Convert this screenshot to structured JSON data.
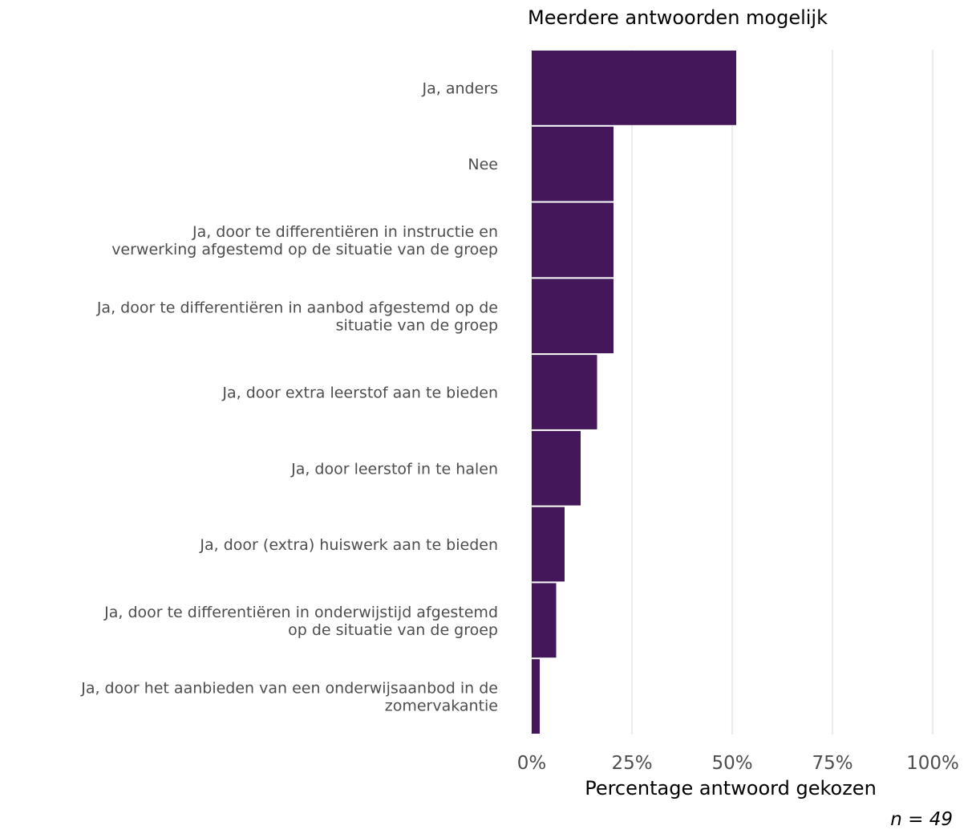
{
  "chart_data": {
    "type": "bar",
    "orientation": "horizontal",
    "subtitle": "Meerdere antwoorden mogelijk",
    "xlabel": "Percentage antwoord gekozen",
    "caption": "n = 49",
    "xlim": [
      0,
      100
    ],
    "xticks": [
      0,
      25,
      50,
      75,
      100
    ],
    "xtick_labels": [
      "0%",
      "25%",
      "50%",
      "75%",
      "100%"
    ],
    "grid": "vertical",
    "bar_color": "#44165a",
    "categories": [
      "Ja, anders",
      "Nee",
      "Ja, door te differentiëren in instructie en verwerking afgestemd op de situatie van de groep",
      "Ja, door te differentiëren in aanbod afgestemd op de situatie van de groep",
      "Ja, door extra leerstof aan te bieden",
      "Ja, door leerstof in te halen",
      "Ja, door (extra) huiswerk aan te bieden",
      "Ja, door te differentiëren in onderwijstijd afgestemd op de situatie van de groep",
      "Ja, door het aanbieden van een onderwijsaanbod in de zomervakantie"
    ],
    "category_lines": [
      [
        "Ja, anders"
      ],
      [
        "Nee"
      ],
      [
        "Ja, door te differentiëren in instructie en",
        "verwerking afgestemd op de situatie van de groep"
      ],
      [
        "Ja, door te differentiëren in aanbod afgestemd op de",
        "situatie van de groep"
      ],
      [
        "Ja, door extra leerstof aan te bieden"
      ],
      [
        "Ja, door leerstof in te halen"
      ],
      [
        "Ja, door (extra) huiswerk aan te bieden"
      ],
      [
        "Ja, door te differentiëren in onderwijstijd afgestemd",
        "op de situatie van de groep"
      ],
      [
        "Ja, door het aanbieden van een onderwijsaanbod in de",
        "zomervakantie"
      ]
    ],
    "values": [
      51.0,
      20.4,
      20.4,
      20.4,
      16.3,
      12.2,
      8.2,
      6.1,
      2.0
    ]
  }
}
